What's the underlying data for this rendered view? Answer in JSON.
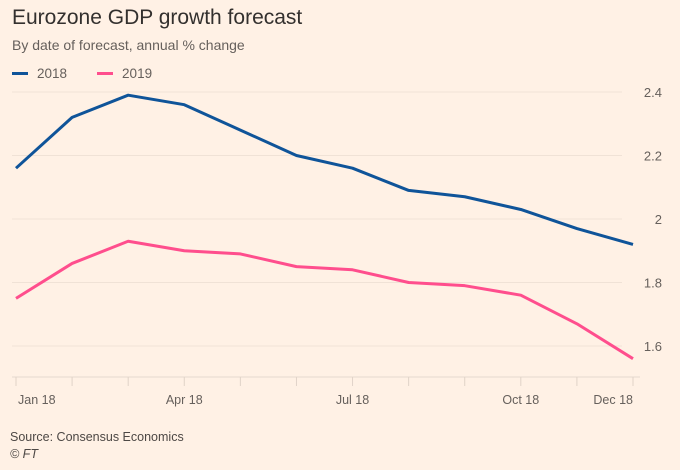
{
  "chart_data": {
    "type": "line",
    "title": "Eurozone GDP growth forecast",
    "subtitle": "By date of forecast, annual % change",
    "xlabel": "",
    "ylabel": "",
    "x": [
      "Jan 18",
      "Feb 18",
      "Mar 18",
      "Apr 18",
      "May 18",
      "Jun 18",
      "Jul 18",
      "Aug 18",
      "Sep 18",
      "Oct 18",
      "Nov 18",
      "Dec 18"
    ],
    "x_tick_labels": [
      "Jan 18",
      "",
      "",
      "Apr 18",
      "",
      "",
      "Jul 18",
      "",
      "",
      "Oct 18",
      "",
      "Dec 18"
    ],
    "y_ticks": [
      1.6,
      1.8,
      2,
      2.2,
      2.4
    ],
    "y_tick_labels": [
      "1.6",
      "1.8",
      "2",
      "2.2",
      "2.4"
    ],
    "ylim": [
      1.52,
      2.44
    ],
    "grid": true,
    "y_axis_side": "right",
    "legend_position": "top-left",
    "series": [
      {
        "name": "2018",
        "color": "#0f5499",
        "values": [
          2.16,
          2.32,
          2.39,
          2.36,
          2.28,
          2.2,
          2.16,
          2.09,
          2.07,
          2.03,
          1.97,
          1.92
        ]
      },
      {
        "name": "2019",
        "color": "#ff4e8d",
        "values": [
          1.75,
          1.86,
          1.93,
          1.9,
          1.89,
          1.85,
          1.84,
          1.8,
          1.79,
          1.76,
          1.67,
          1.56
        ]
      }
    ]
  },
  "footer": {
    "source": "Source: Consensus Economics",
    "copyright": "© FT"
  },
  "colors": {
    "background": "#fff1e5",
    "grid": "#f0e2d6",
    "tick_text": "#66605c"
  }
}
